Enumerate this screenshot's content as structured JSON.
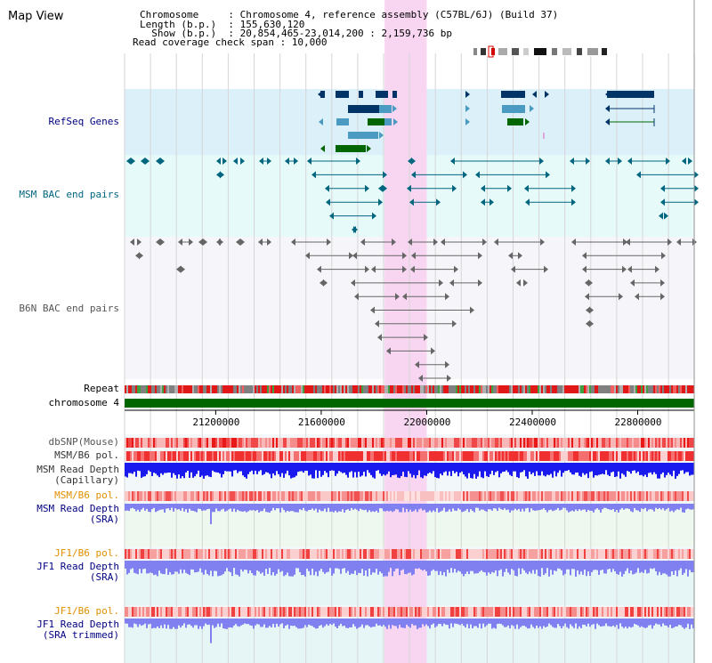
{
  "title": "Map View",
  "info": [
    "Chromosome     : Chromosome 4, reference assembly (C57BL/6J) (Build 37)",
    "Length (b.p.)  : 155,630,120",
    "  Show (b.p.)  : 20,854,465-23,014,200 : 2,159,736 bp",
    "Read coverage check span : 10,000"
  ],
  "tracks": {
    "refseq": "RefSeq Genes",
    "msm_bac": "MSM BAC end pairs",
    "b6n_bac": "B6N BAC end pairs",
    "repeat": "Repeat",
    "chromosome": "chromosome 4",
    "dbsnp": "dbSNP(Mouse)",
    "msm_b6_pol_1": "MSM/B6 pol.",
    "msm_depth_cap_1": "MSM Read Depth",
    "msm_depth_cap_2": "(Capillary)",
    "msm_b6_pol_2": "MSM/B6 pol.",
    "msm_depth_sra_1": "MSM Read Depth",
    "msm_depth_sra_2": "(SRA)",
    "jf1_b6_pol_1": "JF1/B6 pol.",
    "jf1_depth_sra_1": "JF1 Read Depth",
    "jf1_depth_sra_2": "(SRA)",
    "jf1_b6_pol_2": "JF1/B6 pol.",
    "jf1_depth_trim_1": "JF1 Read Depth",
    "jf1_depth_trim_2": "(SRA trimmed)"
  },
  "axis": {
    "range_bp": [
      20854465,
      23014200
    ],
    "ticks": [
      "21200000",
      "21600000",
      "22000000",
      "22400000",
      "22800000"
    ],
    "tick_values": [
      21200000,
      21600000,
      22000000,
      22400000,
      22800000
    ]
  },
  "highlight_bp": [
    21840000,
    22000000
  ],
  "colors": {
    "refseq_bg": "#dcf0fa",
    "bac_bg": "#e6fafa",
    "pink_highlight": "#f8d6f2",
    "chromosome_bar": "#006600",
    "gene_dark": "#003366",
    "gene_mid": "#4a9ac2",
    "gene_green": "#006600",
    "msm_bac": "#006680",
    "b6n_bac": "#666666",
    "label_blue": "#000080",
    "label_teal": "#006680",
    "label_orange": "#e09000",
    "depth_blue_dark": "#1a1aee",
    "depth_blue_light": "#8080f0"
  }
}
